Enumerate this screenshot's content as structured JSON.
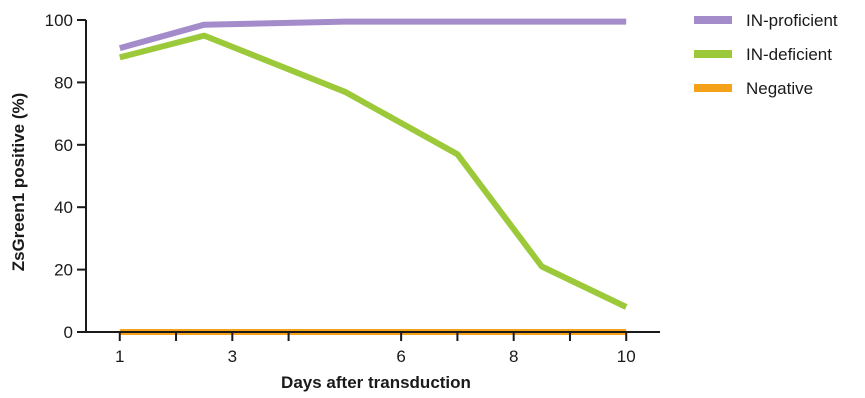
{
  "chart_data": {
    "type": "line",
    "xlabel": "Days after transduction",
    "ylabel": "ZsGreen1 positive (%)",
    "xlim": [
      0.4,
      10.6
    ],
    "ylim": [
      0,
      100
    ],
    "x_ticks": [
      1,
      2,
      3,
      4,
      6,
      7,
      8,
      9,
      10
    ],
    "x_tick_labels": [
      {
        "value": 1,
        "label": "1"
      },
      {
        "value": 3,
        "label": "3"
      },
      {
        "value": 6,
        "label": "6"
      },
      {
        "value": 8,
        "label": "8"
      },
      {
        "value": 10,
        "label": "10"
      }
    ],
    "y_ticks": [
      0,
      20,
      40,
      60,
      80,
      100
    ],
    "grid": false,
    "legend_position": "top-right",
    "series": [
      {
        "name": "IN-proficient",
        "color": "#a48ccb",
        "x": [
          1,
          2.5,
          5,
          10
        ],
        "y": [
          91,
          98.5,
          99.5,
          99.5
        ]
      },
      {
        "name": "IN-deficient",
        "color": "#9cc93a",
        "x": [
          1,
          2.5,
          5,
          7,
          8.5,
          10
        ],
        "y": [
          88,
          95,
          77,
          57,
          21,
          8
        ]
      },
      {
        "name": "Negative",
        "color": "#f5a21b",
        "x": [
          1,
          10
        ],
        "y": [
          0,
          0
        ]
      }
    ]
  }
}
